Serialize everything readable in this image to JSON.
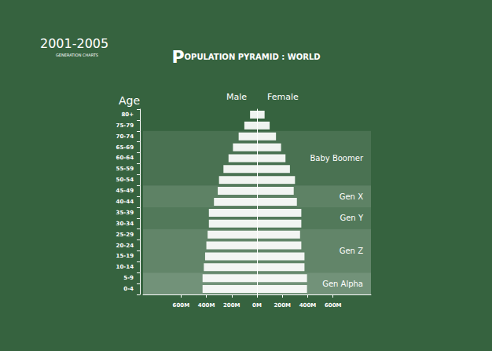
{
  "chart_data": {
    "type": "bar",
    "orientation": "horizontal",
    "title": "POPULATION PYRAMID : WORLD",
    "period": "2001-2005",
    "subtitle": "GENERATION CHARTS",
    "ylabel": "Age",
    "categories": [
      "80+",
      "75-79",
      "70-74",
      "65-69",
      "60-64",
      "55-59",
      "50-54",
      "45-49",
      "40-44",
      "35-39",
      "30-34",
      "25-29",
      "20-24",
      "15-19",
      "10-14",
      "5-9",
      "0-4"
    ],
    "series": [
      {
        "name": "Male",
        "color": "#ffffff",
        "axis": "x",
        "values": [
          55,
          100,
          145,
          190,
          225,
          265,
          300,
          310,
          340,
          380,
          380,
          390,
          400,
          410,
          420,
          430,
          430
        ]
      },
      {
        "name": "Female",
        "color": "#ffffff",
        "axis": "x2",
        "values": [
          60,
          100,
          150,
          190,
          225,
          260,
          300,
          290,
          315,
          350,
          350,
          340,
          350,
          375,
          375,
          395,
          395
        ]
      }
    ],
    "xlim": [
      0,
      900
    ],
    "xticks": [
      {
        "value": 0,
        "label": "0M"
      },
      {
        "value": 200,
        "label": "200M"
      },
      {
        "value": 400,
        "label": "400M"
      },
      {
        "value": 600,
        "label": "600M"
      }
    ],
    "x2lim": [
      0,
      900
    ],
    "x2ticks": [
      {
        "value": 200,
        "label": "200M"
      },
      {
        "value": 400,
        "label": "400M"
      },
      {
        "value": 600,
        "label": "600M"
      }
    ],
    "bands": [
      {
        "label": "Baby Boomer",
        "from": "70-74",
        "to": "50-54"
      },
      {
        "label": "Gen X",
        "from": "45-49",
        "to": "40-44"
      },
      {
        "label": "Gen Y",
        "from": "35-39",
        "to": "30-34"
      },
      {
        "label": "Gen Z",
        "from": "25-29",
        "to": "10-14"
      },
      {
        "label": "Gen Alpha",
        "from": "5-9",
        "to": "0-4"
      }
    ]
  }
}
